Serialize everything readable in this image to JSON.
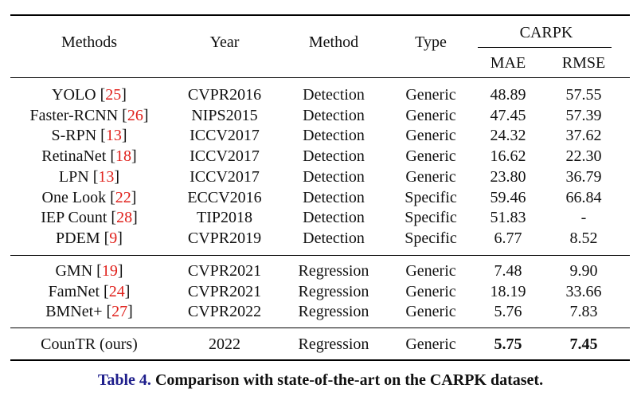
{
  "table": {
    "headers": {
      "methods": "Methods",
      "year": "Year",
      "method": "Method",
      "type": "Type",
      "carpk": "CARPK",
      "mae": "MAE",
      "rmse": "RMSE"
    },
    "groups": [
      [
        {
          "name": "YOLO",
          "ref": "25",
          "year": "CVPR2016",
          "method": "Detection",
          "type": "Generic",
          "mae": "48.89",
          "rmse": "57.55"
        },
        {
          "name": "Faster-RCNN",
          "ref": "26",
          "year": "NIPS2015",
          "method": "Detection",
          "type": "Generic",
          "mae": "47.45",
          "rmse": "57.39"
        },
        {
          "name": "S-RPN",
          "ref": "13",
          "year": "ICCV2017",
          "method": "Detection",
          "type": "Generic",
          "mae": "24.32",
          "rmse": "37.62"
        },
        {
          "name": "RetinaNet",
          "ref": "18",
          "year": "ICCV2017",
          "method": "Detection",
          "type": "Generic",
          "mae": "16.62",
          "rmse": "22.30"
        },
        {
          "name": "LPN",
          "ref": "13",
          "year": "ICCV2017",
          "method": "Detection",
          "type": "Generic",
          "mae": "23.80",
          "rmse": "36.79"
        },
        {
          "name": "One Look",
          "ref": "22",
          "year": "ECCV2016",
          "method": "Detection",
          "type": "Specific",
          "mae": "59.46",
          "rmse": "66.84"
        },
        {
          "name": "IEP Count",
          "ref": "28",
          "year": "TIP2018",
          "method": "Detection",
          "type": "Specific",
          "mae": "51.83",
          "rmse": "-"
        },
        {
          "name": "PDEM",
          "ref": "9",
          "year": "CVPR2019",
          "method": "Detection",
          "type": "Specific",
          "mae": "6.77",
          "rmse": "8.52"
        }
      ],
      [
        {
          "name": "GMN",
          "ref": "19",
          "year": "CVPR2021",
          "method": "Regression",
          "type": "Generic",
          "mae": "7.48",
          "rmse": "9.90"
        },
        {
          "name": "FamNet",
          "ref": "24",
          "year": "CVPR2021",
          "method": "Regression",
          "type": "Generic",
          "mae": "18.19",
          "rmse": "33.66"
        },
        {
          "name": "BMNet+",
          "ref": "27",
          "year": "CVPR2022",
          "method": "Regression",
          "type": "Generic",
          "mae": "5.76",
          "rmse": "7.83"
        }
      ],
      [
        {
          "name": "CounTR (ours)",
          "ref": "",
          "year": "2022",
          "method": "Regression",
          "type": "Generic",
          "mae": "5.75",
          "rmse": "7.45",
          "bold_scores": true
        }
      ]
    ]
  },
  "caption": {
    "label": "Table 4.",
    "text": " Comparison with state-of-the-art on the CARPK dataset."
  },
  "colors": {
    "reference": "#e0201b",
    "caption_label": "#1f1f8c"
  }
}
